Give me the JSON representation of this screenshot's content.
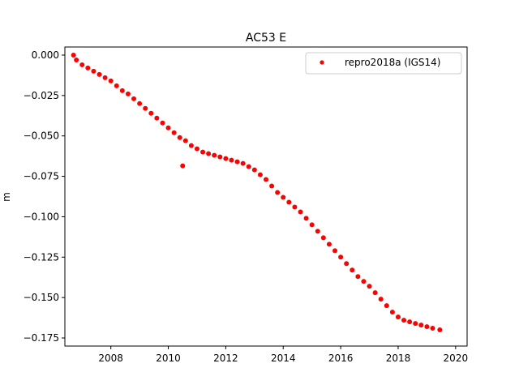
{
  "chart_data": {
    "type": "scatter",
    "title": "AC53 E",
    "xlabel": "",
    "ylabel": "m",
    "xlim": [
      2006.4,
      2020.4
    ],
    "ylim": [
      -0.18,
      0.005
    ],
    "x_ticks": [
      {
        "value": 2008,
        "label": "2008"
      },
      {
        "value": 2010,
        "label": "2010"
      },
      {
        "value": 2012,
        "label": "2012"
      },
      {
        "value": 2014,
        "label": "2014"
      },
      {
        "value": 2016,
        "label": "2016"
      },
      {
        "value": 2018,
        "label": "2018"
      },
      {
        "value": 2020,
        "label": "2020"
      }
    ],
    "y_ticks": [
      {
        "value": 0.0,
        "label": "0.000"
      },
      {
        "value": -0.025,
        "label": "−0.025"
      },
      {
        "value": -0.05,
        "label": "−0.050"
      },
      {
        "value": -0.075,
        "label": "−0.075"
      },
      {
        "value": -0.1,
        "label": "−0.100"
      },
      {
        "value": -0.125,
        "label": "−0.125"
      },
      {
        "value": -0.15,
        "label": "−0.150"
      },
      {
        "value": -0.175,
        "label": "−0.175"
      }
    ],
    "grid": false,
    "legend_position": "top-right",
    "series": [
      {
        "name": "repro2018a (IGS14)",
        "color": "#ff0000",
        "marker": "circle",
        "x": [
          2006.7,
          2006.8,
          2007.0,
          2007.2,
          2007.4,
          2007.6,
          2007.8,
          2008.0,
          2008.2,
          2008.4,
          2008.6,
          2008.8,
          2009.0,
          2009.2,
          2009.4,
          2009.6,
          2009.8,
          2010.0,
          2010.2,
          2010.4,
          2010.6,
          2010.8,
          2011.0,
          2011.2,
          2011.4,
          2011.6,
          2011.8,
          2012.0,
          2012.2,
          2012.4,
          2012.6,
          2012.8,
          2013.0,
          2013.2,
          2013.4,
          2013.6,
          2013.8,
          2014.0,
          2014.2,
          2014.4,
          2014.6,
          2014.8,
          2015.0,
          2015.2,
          2015.4,
          2015.6,
          2015.8,
          2016.0,
          2016.2,
          2016.4,
          2016.6,
          2016.8,
          2017.0,
          2017.2,
          2017.4,
          2017.6,
          2017.8,
          2018.0,
          2018.2,
          2018.4,
          2018.6,
          2018.8,
          2019.0,
          2019.2,
          2019.45
        ],
        "y": [
          0.0,
          -0.003,
          -0.006,
          -0.008,
          -0.01,
          -0.012,
          -0.014,
          -0.016,
          -0.019,
          -0.022,
          -0.024,
          -0.027,
          -0.03,
          -0.033,
          -0.036,
          -0.039,
          -0.042,
          -0.045,
          -0.048,
          -0.051,
          -0.053,
          -0.056,
          -0.058,
          -0.06,
          -0.061,
          -0.062,
          -0.063,
          -0.064,
          -0.065,
          -0.066,
          -0.067,
          -0.069,
          -0.071,
          -0.074,
          -0.077,
          -0.081,
          -0.085,
          -0.088,
          -0.091,
          -0.094,
          -0.097,
          -0.101,
          -0.105,
          -0.109,
          -0.113,
          -0.117,
          -0.121,
          -0.125,
          -0.129,
          -0.133,
          -0.137,
          -0.14,
          -0.143,
          -0.147,
          -0.151,
          -0.155,
          -0.159,
          -0.162,
          -0.164,
          -0.165,
          -0.166,
          -0.167,
          -0.168,
          -0.169,
          -0.17
        ]
      },
      {
        "name": "",
        "color": "#ff0000",
        "marker": "circle",
        "x": [
          2010.5
        ],
        "y": [
          -0.0685
        ]
      }
    ]
  }
}
